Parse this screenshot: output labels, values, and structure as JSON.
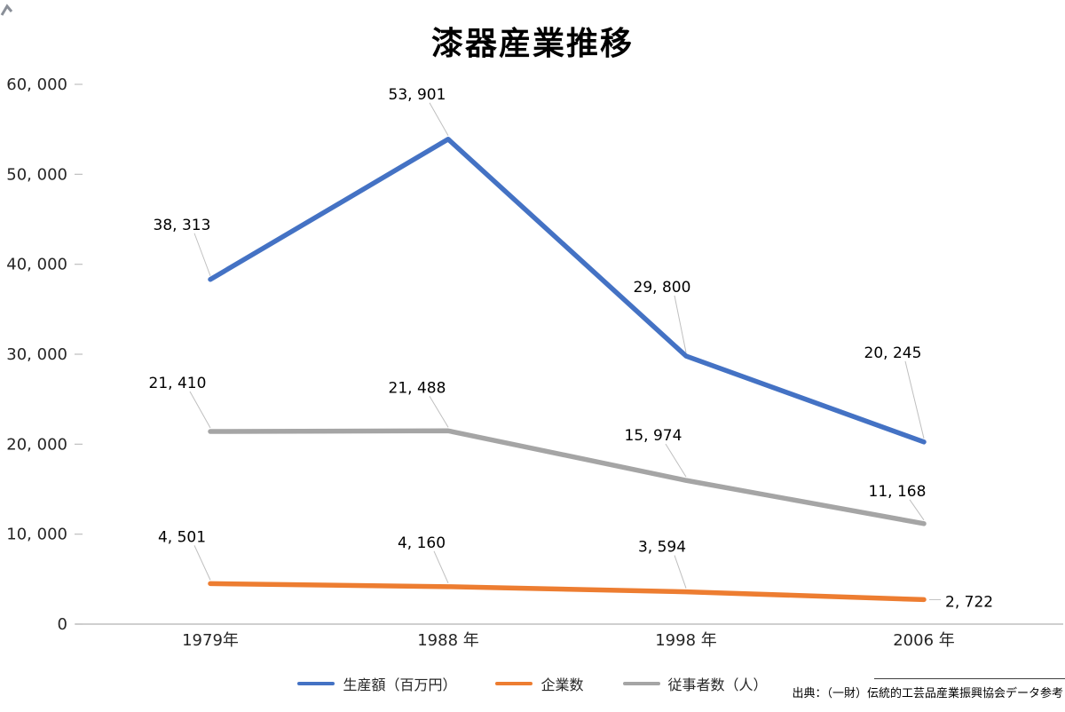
{
  "page": {
    "background": "#FFFFFF"
  },
  "chart_data": {
    "type": "line",
    "title": "漆器産業推移",
    "categories": [
      "1979年",
      "1988 年",
      "1998 年",
      "2006 年"
    ],
    "y_axis": {
      "min": 0,
      "max": 60000,
      "tick_interval": 10000,
      "tick_labels": [
        "0",
        "10, 000",
        "20, 000",
        "30, 000",
        "40, 000",
        "50, 000",
        "60, 000"
      ]
    },
    "series": [
      {
        "name": "生産額（百万円）",
        "color": "#4472C4",
        "values": [
          38313,
          53901,
          29800,
          20245
        ],
        "point_labels": [
          "38, 313",
          "53, 901",
          "29, 800",
          "20, 245"
        ]
      },
      {
        "name": "企業数",
        "color": "#ED7D31",
        "values": [
          4501,
          4160,
          3594,
          2722
        ],
        "point_labels": [
          "4, 501",
          "4, 160",
          "3, 594",
          "2, 722"
        ]
      },
      {
        "name": "従事者数（人）",
        "color": "#A5A5A5",
        "values": [
          21410,
          21488,
          15974,
          11168
        ],
        "point_labels": [
          "21, 410",
          "21, 488",
          "15, 974",
          "11, 168"
        ]
      }
    ],
    "legend": {
      "position": "bottom",
      "entries": [
        "生産額（百万円）",
        "企業数",
        "従事者数（人）"
      ]
    },
    "grid": false,
    "source": "出典：（一財）伝統的工芸品産業振興協会データ参考",
    "layout_hints": {
      "axis_color": "#BFBFBF",
      "leader_color": "#BFBFBF",
      "label_offsets": [
        [
          [
            -32,
            -62
          ],
          [
            -35,
            -51
          ],
          [
            -27,
            -78
          ],
          [
            -35,
            -101
          ]
        ],
        [
          [
            -32,
            -53
          ],
          [
            -30,
            -50
          ],
          [
            -27,
            -51
          ],
          [
            24,
            2,
            "start"
          ]
        ],
        [
          [
            -37,
            -55
          ],
          [
            -35,
            -49
          ],
          [
            -37,
            -51
          ],
          [
            -30,
            -37
          ]
        ]
      ]
    }
  }
}
